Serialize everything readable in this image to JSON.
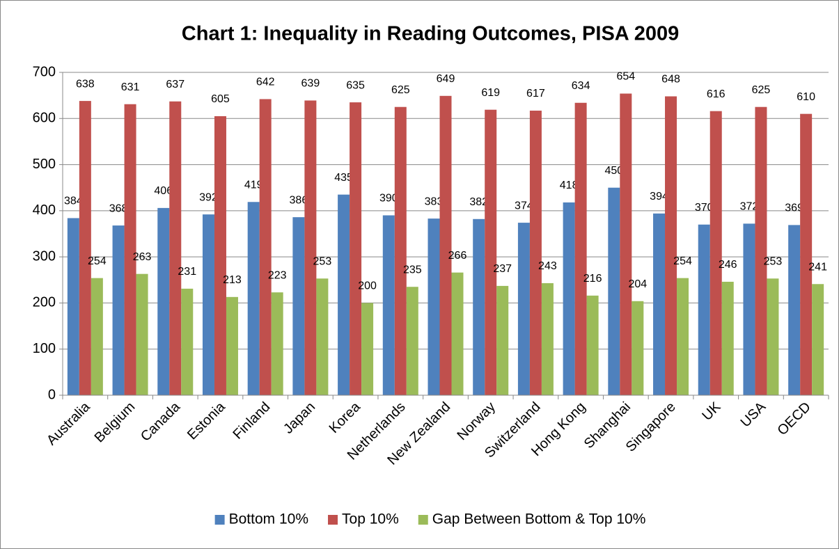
{
  "chart_data": {
    "type": "bar",
    "title": "Chart 1: Inequality in Reading Outcomes, PISA 2009",
    "categories": [
      "Australia",
      "Belgium",
      "Canada",
      "Estonia",
      "Finland",
      "Japan",
      "Korea",
      "Netherlands",
      "New Zealand",
      "Norway",
      "Switzerland",
      "Hong Kong",
      "Shanghai",
      "Singapore",
      "UK",
      "USA",
      "OECD"
    ],
    "series": [
      {
        "name": "Bottom 10%",
        "color": "#4f81bd",
        "values": [
          384,
          368,
          406,
          392,
          419,
          386,
          435,
          390,
          383,
          382,
          374,
          418,
          450,
          394,
          370,
          372,
          369
        ]
      },
      {
        "name": "Top 10%",
        "color": "#c0504d",
        "values": [
          638,
          631,
          637,
          605,
          642,
          639,
          635,
          625,
          649,
          619,
          617,
          634,
          654,
          648,
          616,
          625,
          610
        ]
      },
      {
        "name": "Gap Between Bottom & Top 10%",
        "color": "#9bbb59",
        "values": [
          254,
          263,
          231,
          213,
          223,
          253,
          200,
          235,
          266,
          237,
          243,
          216,
          204,
          254,
          246,
          253,
          241
        ]
      }
    ],
    "ylim": [
      0,
      700
    ],
    "yticks": [
      0,
      100,
      200,
      300,
      400,
      500,
      600,
      700
    ],
    "grid": true,
    "legend": "bottom"
  }
}
